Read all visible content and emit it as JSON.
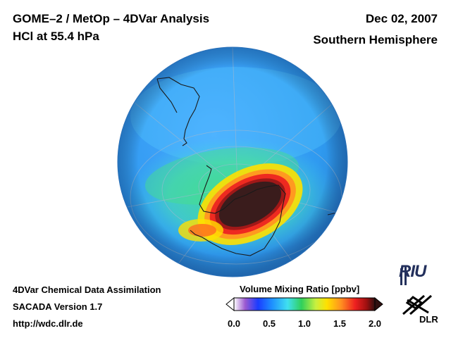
{
  "header": {
    "title_line1": "GOME–2 / MetOp – 4DVar Analysis",
    "title_line2": "HCl at 55.4 hPa",
    "date": "Dec 02, 2007",
    "region": "Southern Hemisphere"
  },
  "footer": {
    "line1": "4DVar Chemical Data Assimilation",
    "line2": "SACADA Version 1.7",
    "line3": "http://wdc.dlr.de"
  },
  "colorbar": {
    "title": "Volume Mixing Ratio [ppbv]",
    "ticks": [
      "0.0",
      "0.5",
      "1.0",
      "1.5",
      "2.0"
    ],
    "range": [
      0.0,
      2.0
    ],
    "colors": [
      "#ffffff",
      "#9b59d0",
      "#1a3cff",
      "#1e90ff",
      "#40e0f0",
      "#30d05a",
      "#c8f040",
      "#ffe000",
      "#ff9020",
      "#ee2020",
      "#a01010",
      "#301010"
    ]
  },
  "map": {
    "projection": "orthographic",
    "hemisphere": "south",
    "background_color": "#3aa0f5",
    "high_value_color": "#3a1c1c"
  },
  "logos": {
    "riu": "RIU",
    "dlr": "DLR"
  }
}
